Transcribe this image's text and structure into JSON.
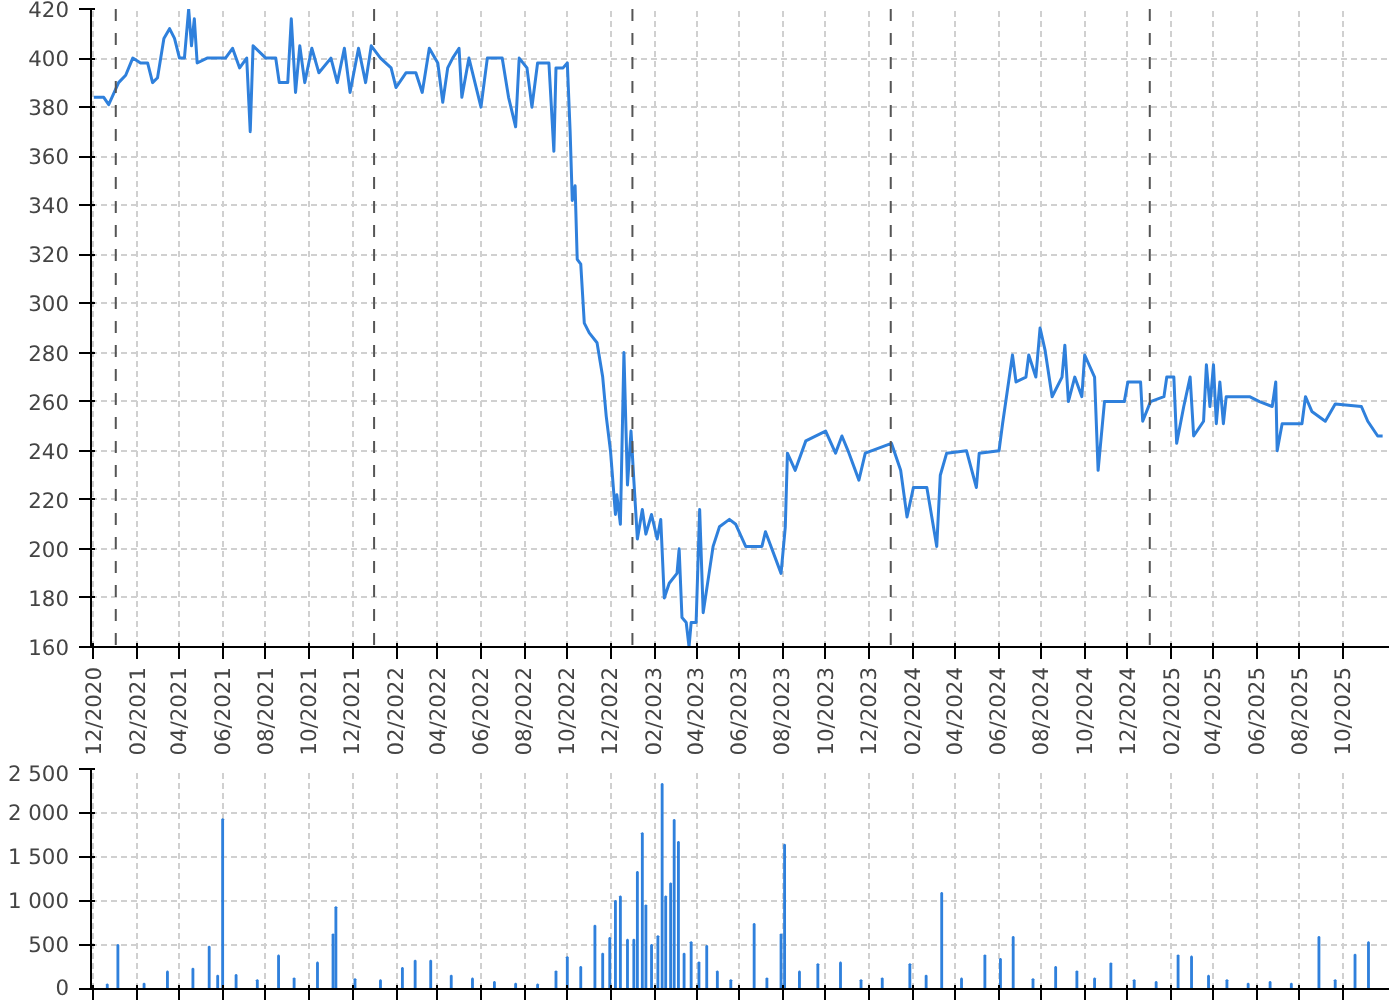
{
  "chart_data": [
    {
      "type": "line",
      "xlim": [
        "2020-11-27",
        "2025-12-05"
      ],
      "ylim": [
        160,
        420
      ],
      "yticks": [
        160,
        180,
        200,
        220,
        240,
        260,
        280,
        300,
        320,
        340,
        360,
        380,
        400,
        420
      ],
      "xticks": [
        {
          "value": "2020-12-01",
          "label": "12/2020"
        },
        {
          "value": "2021-02-01",
          "label": "02/2021"
        },
        {
          "value": "2021-04-01",
          "label": "04/2021"
        },
        {
          "value": "2021-06-01",
          "label": "06/2021"
        },
        {
          "value": "2021-08-01",
          "label": "08/2021"
        },
        {
          "value": "2021-10-01",
          "label": "10/2021"
        },
        {
          "value": "2021-12-01",
          "label": "12/2021"
        },
        {
          "value": "2022-02-01",
          "label": "02/2022"
        },
        {
          "value": "2022-04-01",
          "label": "04/2022"
        },
        {
          "value": "2022-06-01",
          "label": "06/2022"
        },
        {
          "value": "2022-08-01",
          "label": "08/2022"
        },
        {
          "value": "2022-10-01",
          "label": "10/2022"
        },
        {
          "value": "2022-12-01",
          "label": "12/2022"
        },
        {
          "value": "2023-02-01",
          "label": "02/2023"
        },
        {
          "value": "2023-04-01",
          "label": "04/2023"
        },
        {
          "value": "2023-06-01",
          "label": "06/2023"
        },
        {
          "value": "2023-08-01",
          "label": "08/2023"
        },
        {
          "value": "2023-10-01",
          "label": "10/2023"
        },
        {
          "value": "2023-12-01",
          "label": "12/2023"
        },
        {
          "value": "2024-02-01",
          "label": "02/2024"
        },
        {
          "value": "2024-04-01",
          "label": "04/2024"
        },
        {
          "value": "2024-06-01",
          "label": "06/2024"
        },
        {
          "value": "2024-08-01",
          "label": "08/2024"
        },
        {
          "value": "2024-10-01",
          "label": "10/2024"
        },
        {
          "value": "2024-12-01",
          "label": "12/2024"
        },
        {
          "value": "2025-02-01",
          "label": "02/2025"
        },
        {
          "value": "2025-04-01",
          "label": "04/2025"
        },
        {
          "value": "2025-06-01",
          "label": "06/2025"
        },
        {
          "value": "2025-08-01",
          "label": "08/2025"
        },
        {
          "value": "2025-10-01",
          "label": "10/2025"
        }
      ],
      "grid": true,
      "line_style": "solid",
      "ref_lines": [
        {
          "axis": "x",
          "value": "2021-01-01",
          "color": "#555555",
          "line_style": "dashed"
        },
        {
          "axis": "x",
          "value": "2022-01-01",
          "color": "#555555",
          "line_style": "dashed"
        },
        {
          "axis": "x",
          "value": "2023-01-01",
          "color": "#555555",
          "line_style": "dashed"
        },
        {
          "axis": "x",
          "value": "2024-01-01",
          "color": "#555555",
          "line_style": "dashed"
        },
        {
          "axis": "x",
          "value": "2025-01-01",
          "color": "#555555",
          "line_style": "dashed"
        }
      ],
      "x": [
        "2020-12-01",
        "2020-12-15",
        "2020-12-22",
        "2021-01-05",
        "2021-01-15",
        "2021-01-25",
        "2021-02-05",
        "2021-02-15",
        "2021-02-22",
        "2021-03-01",
        "2021-03-10",
        "2021-03-18",
        "2021-03-25",
        "2021-04-01",
        "2021-04-08",
        "2021-04-14",
        "2021-04-18",
        "2021-04-22",
        "2021-04-26",
        "2021-05-10",
        "2021-06-05",
        "2021-06-15",
        "2021-06-25",
        "2021-07-05",
        "2021-07-10",
        "2021-07-14",
        "2021-08-01",
        "2021-08-15",
        "2021-08-20",
        "2021-09-01",
        "2021-09-06",
        "2021-09-12",
        "2021-09-18",
        "2021-09-25",
        "2021-10-05",
        "2021-10-15",
        "2021-11-01",
        "2021-11-10",
        "2021-11-20",
        "2021-11-28",
        "2021-12-10",
        "2021-12-20",
        "2021-12-28",
        "2022-01-10",
        "2022-01-25",
        "2022-02-01",
        "2022-02-15",
        "2022-03-01",
        "2022-03-10",
        "2022-03-20",
        "2022-04-01",
        "2022-04-08",
        "2022-04-15",
        "2022-04-22",
        "2022-05-01",
        "2022-05-05",
        "2022-05-15",
        "2022-06-01",
        "2022-06-10",
        "2022-07-01",
        "2022-07-10",
        "2022-07-20",
        "2022-07-25",
        "2022-08-05",
        "2022-08-12",
        "2022-08-20",
        "2022-09-05",
        "2022-09-12",
        "2022-09-15",
        "2022-09-25",
        "2022-10-01",
        "2022-10-05",
        "2022-10-08",
        "2022-10-12",
        "2022-10-15",
        "2022-10-20",
        "2022-10-25",
        "2022-11-01",
        "2022-11-12",
        "2022-11-20",
        "2022-11-25",
        "2022-12-01",
        "2022-12-08",
        "2022-12-10",
        "2022-12-15",
        "2022-12-20",
        "2022-12-25",
        "2022-12-30",
        "2023-01-03",
        "2023-01-08",
        "2023-01-15",
        "2023-01-20",
        "2023-01-28",
        "2023-02-05",
        "2023-02-10",
        "2023-02-15",
        "2023-02-22",
        "2023-03-05",
        "2023-03-08",
        "2023-03-12",
        "2023-03-18",
        "2023-03-22",
        "2023-03-25",
        "2023-04-01",
        "2023-04-06",
        "2023-04-11",
        "2023-04-25",
        "2023-05-04",
        "2023-05-18",
        "2023-05-27",
        "2023-06-10",
        "2023-07-03",
        "2023-07-08",
        "2023-07-30",
        "2023-08-05",
        "2023-08-08",
        "2023-08-19",
        "2023-09-03",
        "2023-10-01",
        "2023-10-15",
        "2023-10-24",
        "2023-11-03",
        "2023-11-17",
        "2023-11-26",
        "2024-01-02",
        "2024-01-15",
        "2024-01-24",
        "2024-02-02",
        "2024-02-21",
        "2024-03-06",
        "2024-03-11",
        "2024-03-20",
        "2024-04-17",
        "2024-05-01",
        "2024-05-05",
        "2024-06-02",
        "2024-06-07",
        "2024-06-21",
        "2024-06-26",
        "2024-07-10",
        "2024-07-14",
        "2024-07-24",
        "2024-07-30",
        "2024-08-06",
        "2024-08-16",
        "2024-08-30",
        "2024-09-03",
        "2024-09-08",
        "2024-09-17",
        "2024-09-27",
        "2024-10-01",
        "2024-10-15",
        "2024-10-20",
        "2024-10-29",
        "2024-11-26",
        "2024-12-01",
        "2024-12-19",
        "2024-12-22",
        "2025-01-02",
        "2025-01-21",
        "2025-01-25",
        "2025-02-04",
        "2025-02-08",
        "2025-02-18",
        "2025-02-27",
        "2025-03-04",
        "2025-03-18",
        "2025-03-22",
        "2025-03-27",
        "2025-04-01",
        "2025-04-05",
        "2025-04-10",
        "2025-04-15",
        "2025-04-19",
        "2025-05-22",
        "2025-06-05",
        "2025-06-23",
        "2025-06-28",
        "2025-06-30",
        "2025-07-07",
        "2025-08-04",
        "2025-08-09",
        "2025-08-18",
        "2025-09-06",
        "2025-09-20",
        "2025-10-27",
        "2025-11-05",
        "2025-11-19",
        "2025-11-26"
      ],
      "series": [
        {
          "color": "#2f80dc",
          "values": [
            384,
            384,
            381,
            390,
            393,
            400,
            398,
            398,
            390,
            392,
            408,
            412,
            408,
            400,
            400,
            420,
            405,
            416,
            398,
            400,
            400,
            404,
            396,
            400,
            370,
            405,
            400,
            400,
            390,
            390,
            416,
            386,
            405,
            390,
            404,
            394,
            400,
            390,
            404,
            386,
            404,
            390,
            405,
            400,
            396,
            388,
            394,
            394,
            386,
            404,
            398,
            382,
            396,
            400,
            404,
            384,
            400,
            380,
            400,
            400,
            384,
            372,
            400,
            396,
            380,
            398,
            398,
            362,
            396,
            396,
            398,
            370,
            342,
            348,
            318,
            316,
            292,
            288,
            284,
            270,
            254,
            240,
            214,
            222,
            210,
            280,
            226,
            248,
            228,
            204,
            216,
            206,
            214,
            204,
            212,
            180,
            186,
            190,
            200,
            172,
            170,
            160,
            170,
            170,
            216,
            174,
            201,
            209,
            212,
            210,
            201,
            201,
            207,
            190,
            209,
            239,
            232,
            244,
            248,
            239,
            246,
            239,
            228,
            239,
            243,
            232,
            213,
            225,
            225,
            201,
            230,
            239,
            240,
            225,
            239,
            240,
            251,
            279,
            268,
            270,
            279,
            270,
            290,
            281,
            262,
            270,
            283,
            260,
            270,
            262,
            279,
            270,
            232,
            260,
            260,
            268,
            268,
            252,
            260,
            262,
            270,
            270,
            243,
            258,
            270,
            246,
            252,
            275,
            258,
            275,
            251,
            268,
            251,
            262,
            262,
            260,
            258,
            268,
            240,
            251,
            251,
            262,
            256,
            252,
            259,
            258,
            252,
            246,
            246
          ]
        }
      ]
    },
    {
      "type": "bar",
      "xlim": [
        "2020-11-27",
        "2025-12-05"
      ],
      "ylim": [
        0,
        2500
      ],
      "yticks": [
        0,
        {
          "value": 500,
          "label": "500"
        },
        {
          "value": 1000,
          "label": "1 000"
        },
        {
          "value": 1500,
          "label": "1 500"
        },
        {
          "value": 2000,
          "label": "2 000"
        },
        {
          "value": 2500,
          "label": "2 500"
        }
      ],
      "xticks": [
        "2020-12-01",
        "2021-02-01",
        "2021-04-01",
        "2021-06-01",
        "2021-08-01",
        "2021-10-01",
        "2021-12-01",
        "2022-02-01",
        "2022-04-01",
        "2022-06-01",
        "2022-08-01",
        "2022-10-01",
        "2022-12-01",
        "2023-02-01",
        "2023-04-01",
        "2023-06-01",
        "2023-08-01",
        "2023-10-01",
        "2023-12-01",
        "2024-02-01",
        "2024-04-01",
        "2024-06-01",
        "2024-08-01",
        "2024-10-01",
        "2024-12-01",
        "2025-02-01",
        "2025-04-01",
        "2025-06-01",
        "2025-08-01",
        "2025-10-01"
      ],
      "tick_labels": "y",
      "grid": true,
      "x": [
        "2020-12-20",
        "2021-01-04",
        "2021-02-10",
        "2021-03-15",
        "2021-04-20",
        "2021-05-13",
        "2021-05-25",
        "2021-06-01",
        "2021-06-20",
        "2021-07-20",
        "2021-08-19",
        "2021-09-10",
        "2021-10-13",
        "2021-11-04",
        "2021-11-08",
        "2021-12-05",
        "2022-01-10",
        "2022-02-10",
        "2022-02-28",
        "2022-03-22",
        "2022-04-20",
        "2022-05-20",
        "2022-06-20",
        "2022-07-20",
        "2022-08-20",
        "2022-09-15",
        "2022-10-01",
        "2022-10-20",
        "2022-11-09",
        "2022-11-20",
        "2022-11-30",
        "2022-12-08",
        "2022-12-15",
        "2022-12-25",
        "2023-01-03",
        "2023-01-08",
        "2023-01-15",
        "2023-01-20",
        "2023-01-28",
        "2023-02-06",
        "2023-02-12",
        "2023-02-17",
        "2023-02-24",
        "2023-03-01",
        "2023-03-07",
        "2023-03-15",
        "2023-03-25",
        "2023-04-05",
        "2023-04-16",
        "2023-05-01",
        "2023-05-20",
        "2023-06-22",
        "2023-07-10",
        "2023-07-30",
        "2023-08-04",
        "2023-08-25",
        "2023-09-20",
        "2023-10-22",
        "2023-11-20",
        "2023-12-20",
        "2024-01-28",
        "2024-02-20",
        "2024-03-13",
        "2024-04-10",
        "2024-05-13",
        "2024-06-04",
        "2024-06-22",
        "2024-07-20",
        "2024-08-21",
        "2024-09-20",
        "2024-10-15",
        "2024-11-07",
        "2024-12-10",
        "2025-01-10",
        "2025-02-10",
        "2025-03-01",
        "2025-03-25",
        "2025-04-20",
        "2025-05-20",
        "2025-06-20",
        "2025-07-20",
        "2025-08-28",
        "2025-09-20",
        "2025-10-18",
        "2025-11-06"
      ],
      "series": [
        {
          "color": "#2f80dc",
          "values": [
            50,
            500,
            60,
            200,
            230,
            480,
            150,
            1930,
            160,
            100,
            380,
            120,
            300,
            620,
            930,
            110,
            100,
            240,
            320,
            320,
            150,
            120,
            80,
            60,
            50,
            200,
            360,
            250,
            720,
            400,
            580,
            1000,
            1050,
            560,
            560,
            1330,
            1770,
            950,
            500,
            600,
            2330,
            1050,
            1200,
            1920,
            1670,
            400,
            530,
            300,
            490,
            200,
            100,
            740,
            120,
            620,
            1640,
            200,
            280,
            300,
            100,
            120,
            280,
            150,
            1090,
            120,
            380,
            340,
            590,
            110,
            250,
            200,
            120,
            290,
            100,
            80,
            380,
            370,
            150,
            100,
            60,
            80,
            60,
            590,
            100,
            390,
            530
          ]
        }
      ]
    }
  ]
}
